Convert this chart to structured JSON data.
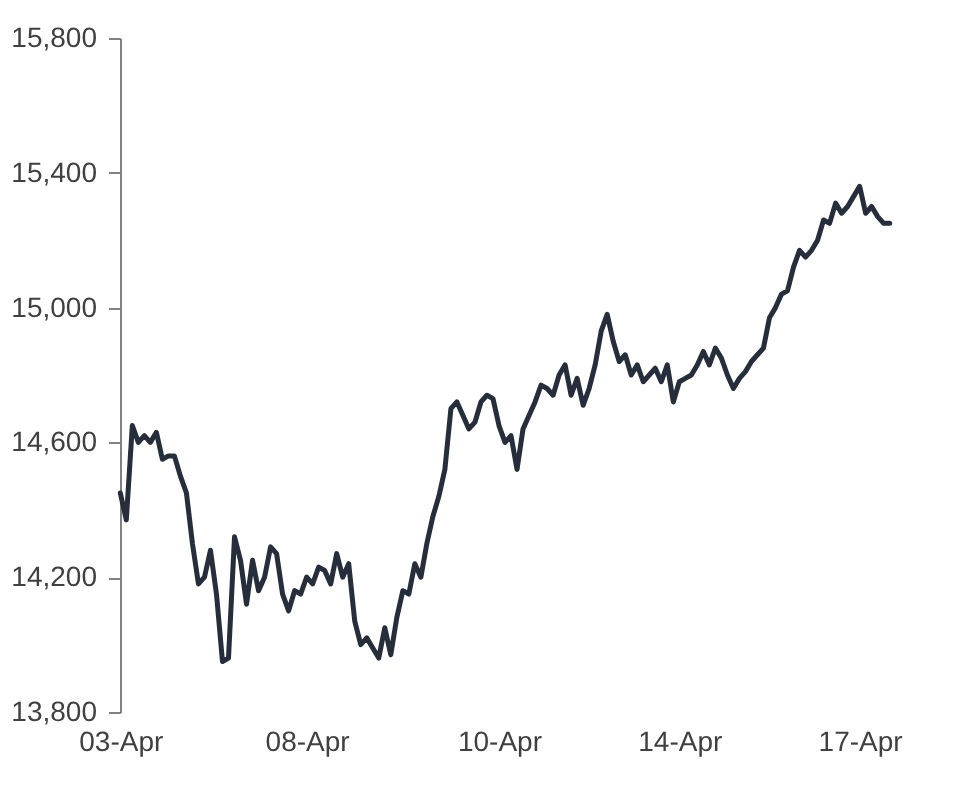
{
  "chart_data": {
    "type": "line",
    "categories": [
      "03-Apr",
      null,
      null,
      null,
      null,
      null,
      null,
      null,
      null,
      null,
      null,
      null,
      null,
      null,
      null,
      null,
      null,
      null,
      null,
      null,
      null,
      null,
      null,
      null,
      null,
      null,
      null,
      null,
      null,
      null,
      null,
      "08-Apr",
      null,
      null,
      null,
      null,
      null,
      null,
      null,
      null,
      null,
      null,
      null,
      null,
      null,
      null,
      null,
      null,
      null,
      null,
      null,
      null,
      null,
      null,
      null,
      null,
      null,
      null,
      null,
      null,
      null,
      null,
      null,
      "10-Apr",
      null,
      null,
      null,
      null,
      null,
      null,
      null,
      null,
      null,
      null,
      null,
      null,
      null,
      null,
      null,
      null,
      null,
      null,
      null,
      null,
      null,
      null,
      null,
      null,
      null,
      null,
      null,
      null,
      null,
      "14-Apr",
      null,
      null,
      null,
      null,
      null,
      null,
      null,
      null,
      null,
      null,
      null,
      null,
      null,
      null,
      null,
      null,
      null,
      null,
      null,
      null,
      null,
      null,
      null,
      null,
      null,
      null,
      null,
      null,
      null,
      "17-Apr",
      null,
      null,
      null,
      null,
      null
    ],
    "series": [
      {
        "color": "#262d3b",
        "values": [
          14450,
          14370,
          14650,
          14600,
          14620,
          14600,
          14630,
          14550,
          14560,
          14560,
          14500,
          14450,
          14300,
          14180,
          14200,
          14280,
          14150,
          13950,
          13960,
          14320,
          14250,
          14120,
          14250,
          14160,
          14200,
          14290,
          14270,
          14150,
          14100,
          14160,
          14150,
          14200,
          14180,
          14230,
          14220,
          14180,
          14270,
          14200,
          14240,
          14070,
          14000,
          14020,
          13990,
          13960,
          14050,
          13970,
          14080,
          14160,
          14150,
          14240,
          14200,
          14300,
          14380,
          14440,
          14520,
          14700,
          14720,
          14680,
          14640,
          14660,
          14720,
          14740,
          14730,
          14650,
          14600,
          14620,
          14520,
          14640,
          14680,
          14720,
          14770,
          14760,
          14740,
          14800,
          14830,
          14740,
          14790,
          14710,
          14760,
          14830,
          14930,
          14980,
          14900,
          14840,
          14860,
          14800,
          14830,
          14780,
          14800,
          14820,
          14780,
          14830,
          14720,
          14780,
          14790,
          14800,
          14830,
          14870,
          14830,
          14880,
          14850,
          14800,
          14760,
          14790,
          14810,
          14840,
          14860,
          14880,
          14970,
          15000,
          15040,
          15050,
          15120,
          15170,
          15150,
          15170,
          15200,
          15260,
          15250,
          15310,
          15280,
          15300,
          15330,
          15360,
          15280,
          15300,
          15270,
          15250,
          15250
        ]
      }
    ],
    "ylim": [
      13800,
      15800
    ],
    "yticks": [
      {
        "value": 13800,
        "label": "13,800"
      },
      {
        "value": 14200,
        "label": "14,200"
      },
      {
        "value": 14600,
        "label": "14,600"
      },
      {
        "value": 15000,
        "label": "15,000"
      },
      {
        "value": 15400,
        "label": "15,400"
      },
      {
        "value": 15800,
        "label": "15,800"
      }
    ],
    "grid": false,
    "legend": false,
    "marker": "none",
    "line_style": "solid"
  }
}
